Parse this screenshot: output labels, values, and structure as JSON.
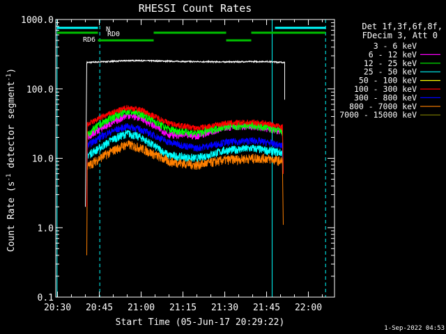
{
  "chart_data": {
    "type": "line",
    "title": "RHESSI Count Rates",
    "xlabel": "Start Time (05-Jun-17 20:29:22)",
    "ylabel_main": "Count Rate (s",
    "ylabel_sup1": "-1",
    "ylabel_mid": " detector segment",
    "ylabel_sup2": "-1",
    "ylabel_end": ")",
    "y_scale": "log",
    "ylim": [
      0.1,
      1000
    ],
    "xlim": [
      "20:29:22",
      "22:09:22"
    ],
    "x_ticks": [
      "20:30",
      "20:45",
      "21:00",
      "21:15",
      "21:30",
      "21:45",
      "22:00"
    ],
    "y_ticks": [
      "0.1",
      "1.0",
      "10.0",
      "100.0",
      "1000.0"
    ],
    "legend_header": [
      "Det 1f,3f,6f,8f,",
      "FDecim 3, Att 0"
    ],
    "legend_position": "right",
    "series": [
      {
        "name": "3 - 6 keV",
        "color": "#000000",
        "time": [
          "20:40:00",
          "20:40:30",
          "20:45",
          "20:55",
          "21:00",
          "21:15",
          "21:30",
          "21:45",
          "21:51:30",
          "21:52"
        ],
        "values": [
          2,
          240,
          245,
          255,
          255,
          248,
          245,
          248,
          240,
          70
        ]
      },
      {
        "name": "6 - 12 keV",
        "color": "#ff00ff",
        "time": [
          "20:40:30",
          "20:45",
          "20:50",
          "20:55",
          "21:00",
          "21:10",
          "21:20",
          "21:30",
          "21:40",
          "21:45",
          "21:51"
        ],
        "values": [
          20,
          26,
          33,
          42,
          38,
          22,
          21,
          28,
          29,
          27,
          24
        ]
      },
      {
        "name": "12 - 25 keV",
        "color": "#00ff00",
        "time": [
          "20:40:30",
          "20:45",
          "20:50",
          "20:55",
          "21:00",
          "21:10",
          "21:20",
          "21:30",
          "21:40",
          "21:45",
          "21:51"
        ],
        "values": [
          22,
          30,
          40,
          48,
          44,
          26,
          23,
          29,
          30,
          28,
          24
        ]
      },
      {
        "name": "25 - 50 keV",
        "color": "#00ffff",
        "time": [
          "20:40:30",
          "20:45",
          "20:50",
          "20:55",
          "21:00",
          "21:10",
          "21:20",
          "21:30",
          "21:40",
          "21:45",
          "21:51"
        ],
        "values": [
          11,
          14,
          19,
          23,
          20,
          11,
          10,
          13,
          14,
          13,
          12
        ]
      },
      {
        "name": "50 - 100 keV",
        "color": "#ffff00",
        "time": [],
        "values": []
      },
      {
        "name": "100 - 300 keV",
        "color": "#ff0000",
        "time": [
          "20:40:30",
          "20:45",
          "20:50",
          "20:55",
          "21:00",
          "21:10",
          "21:20",
          "21:30",
          "21:40",
          "21:45",
          "21:51"
        ],
        "values": [
          30,
          38,
          46,
          54,
          50,
          32,
          27,
          32,
          33,
          32,
          28
        ]
      },
      {
        "name": "300 - 800 keV",
        "color": "#0000ff",
        "time": [
          "20:40:30",
          "20:45",
          "20:50",
          "20:55",
          "21:00",
          "21:10",
          "21:20",
          "21:30",
          "21:40",
          "21:45",
          "21:51"
        ],
        "values": [
          15,
          20,
          25,
          29,
          26,
          17,
          14,
          17,
          18,
          17,
          15
        ]
      },
      {
        "name": "800 - 7000 keV",
        "color": "#ff8000",
        "time": [
          "20:40:30",
          "20:45",
          "20:50",
          "20:55",
          "21:00",
          "21:10",
          "21:20",
          "21:30",
          "21:40",
          "21:45",
          "21:51"
        ],
        "values": [
          7.5,
          10,
          13,
          16,
          14,
          9,
          8,
          9.5,
          10,
          10,
          9
        ]
      },
      {
        "name": "7000 - 15000 keV",
        "color": "#808000",
        "time": [],
        "values": []
      }
    ],
    "annotations": [
      "N",
      "RD0",
      "RD6"
    ],
    "timestamp": "1-Sep-2022 04:53"
  }
}
